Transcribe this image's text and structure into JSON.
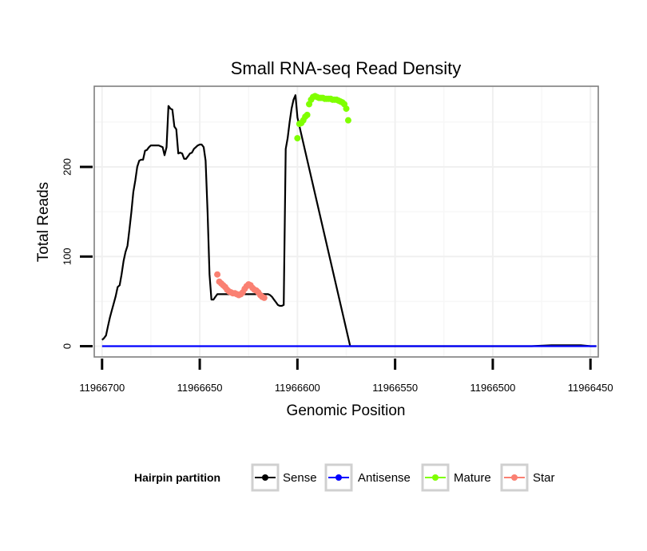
{
  "chart_data": {
    "type": "line",
    "title": "Small RNA-seq Read Density",
    "xlabel": "Genomic Position",
    "ylabel": "Total Reads",
    "xlim": [
      11966704,
      11966446
    ],
    "ylim": [
      -12,
      290
    ],
    "x_ticks": [
      11966700,
      11966650,
      11966600,
      11966550,
      11966500,
      11966450
    ],
    "x_tick_labels": [
      "11966700",
      "11966650",
      "11966600",
      "11966550",
      "11966500",
      "11966450"
    ],
    "y_ticks": [
      0,
      100,
      200
    ],
    "y_tick_labels": [
      "0",
      "100",
      "200"
    ],
    "legend": {
      "title": "Hairpin partition",
      "entries": [
        "Sense",
        "Antisense",
        "Mature",
        "Star"
      ],
      "position": "bottom"
    },
    "colors": {
      "Sense": "#000000",
      "Antisense": "#0000ff",
      "Mature": "#7fff00",
      "Star": "#fa8072"
    },
    "series": [
      {
        "name": "Sense",
        "x": [
          11966700,
          11966699,
          11966698,
          11966697,
          11966696,
          11966695,
          11966694,
          11966693,
          11966692,
          11966691,
          11966690,
          11966689,
          11966688,
          11966687,
          11966686,
          11966685,
          11966684,
          11966683,
          11966682,
          11966681,
          11966680,
          11966679,
          11966678,
          11966677,
          11966676,
          11966675,
          11966674,
          11966673,
          11966672,
          11966671,
          11966670,
          11966669,
          11966668,
          11966667,
          11966666,
          11966665,
          11966664,
          11966663,
          11966662,
          11966661,
          11966660,
          11966659,
          11966658,
          11966657,
          11966656,
          11966655,
          11966654,
          11966653,
          11966652,
          11966651,
          11966650,
          11966649,
          11966648,
          11966647,
          11966646,
          11966645,
          11966644,
          11966643,
          11966642,
          11966641,
          11966616,
          11966615,
          11966614,
          11966613,
          11966612,
          11966611,
          11966610,
          11966609,
          11966608,
          11966607,
          11966606,
          11966605,
          11966604,
          11966603,
          11966602,
          11966601,
          11966600,
          11966573,
          11966572,
          11966570,
          11966560,
          11966540,
          11966520,
          11966500,
          11966490,
          11966480,
          11966470,
          11966460,
          11966455,
          11966450,
          11966447
        ],
        "y": [
          7,
          9,
          12,
          22,
          32,
          40,
          48,
          56,
          66,
          68,
          80,
          95,
          105,
          112,
          130,
          150,
          172,
          185,
          200,
          207,
          208,
          208,
          218,
          219,
          222,
          224,
          224,
          224,
          224,
          224,
          223,
          222,
          213,
          222,
          268,
          265,
          264,
          245,
          242,
          215,
          216,
          215,
          209,
          209,
          212,
          215,
          216,
          220,
          222,
          224,
          225,
          225,
          222,
          207,
          149,
          80,
          52,
          52,
          55,
          58,
          58,
          58,
          57,
          55,
          52,
          49,
          46,
          45,
          45,
          46,
          220,
          232,
          250,
          265,
          275,
          280,
          255,
          0,
          0,
          0,
          0,
          0,
          0,
          0,
          0,
          0,
          1,
          1,
          1,
          0,
          0
        ]
      },
      {
        "name": "Antisense",
        "x": [
          11966700,
          11966650,
          11966600,
          11966550,
          11966500,
          11966447
        ],
        "y": [
          0,
          0,
          0,
          0,
          0,
          0
        ]
      },
      {
        "name": "Mature",
        "x": [
          11966600,
          11966599,
          11966598,
          11966597,
          11966596,
          11966595,
          11966594,
          11966593,
          11966592,
          11966591,
          11966590,
          11966589,
          11966588,
          11966587,
          11966586,
          11966585,
          11966584,
          11966583,
          11966582,
          11966581,
          11966580,
          11966579,
          11966578,
          11966577,
          11966576,
          11966575,
          11966574
        ],
        "y": [
          232,
          248,
          249,
          252,
          256,
          258,
          270,
          275,
          278,
          279,
          278,
          277,
          277,
          277,
          276,
          276,
          276,
          276,
          275,
          275,
          275,
          274,
          273,
          272,
          270,
          265,
          252
        ]
      },
      {
        "name": "Star",
        "x": [
          11966641,
          11966640,
          11966639,
          11966638,
          11966637,
          11966636,
          11966635,
          11966634,
          11966633,
          11966632,
          11966631,
          11966630,
          11966629,
          11966628,
          11966627,
          11966626,
          11966625,
          11966624,
          11966623,
          11966622,
          11966621,
          11966620,
          11966619,
          11966618,
          11966617
        ],
        "y": [
          80,
          72,
          70,
          68,
          66,
          63,
          61,
          60,
          59,
          59,
          58,
          57,
          58,
          60,
          64,
          67,
          69,
          68,
          65,
          63,
          62,
          60,
          57,
          55,
          54
        ]
      }
    ]
  }
}
